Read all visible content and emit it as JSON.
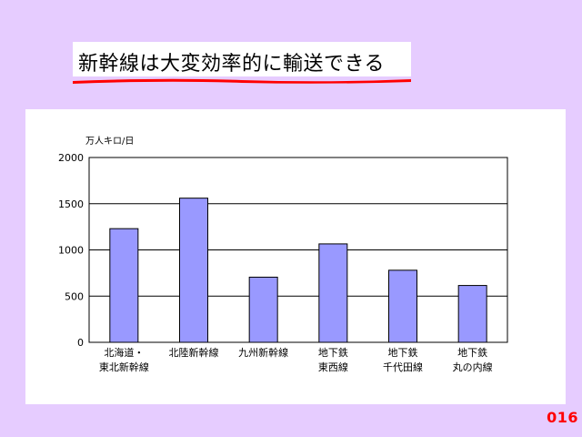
{
  "slide": {
    "title": "新幹線は大変効率的に輸送できる",
    "page_number": "016"
  },
  "colors": {
    "background": "#e6ccff",
    "bar_fill": "#9999ff",
    "underline": "#ff0000",
    "page_number": "#ff0000"
  },
  "chart_data": {
    "type": "bar",
    "unit_label": "万人キロ/日",
    "categories": [
      [
        "北海道・",
        "東北新幹線"
      ],
      [
        "北陸新幹線"
      ],
      [
        "九州新幹線"
      ],
      [
        "地下鉄",
        "東西線"
      ],
      [
        "地下鉄",
        "千代田線"
      ],
      [
        "地下鉄",
        "丸の内線"
      ]
    ],
    "values": [
      1230,
      1560,
      705,
      1065,
      780,
      615
    ],
    "ylim": [
      0,
      2000
    ],
    "yticks": [
      0,
      500,
      1000,
      1500,
      2000
    ],
    "grid": true,
    "legend": "none"
  }
}
